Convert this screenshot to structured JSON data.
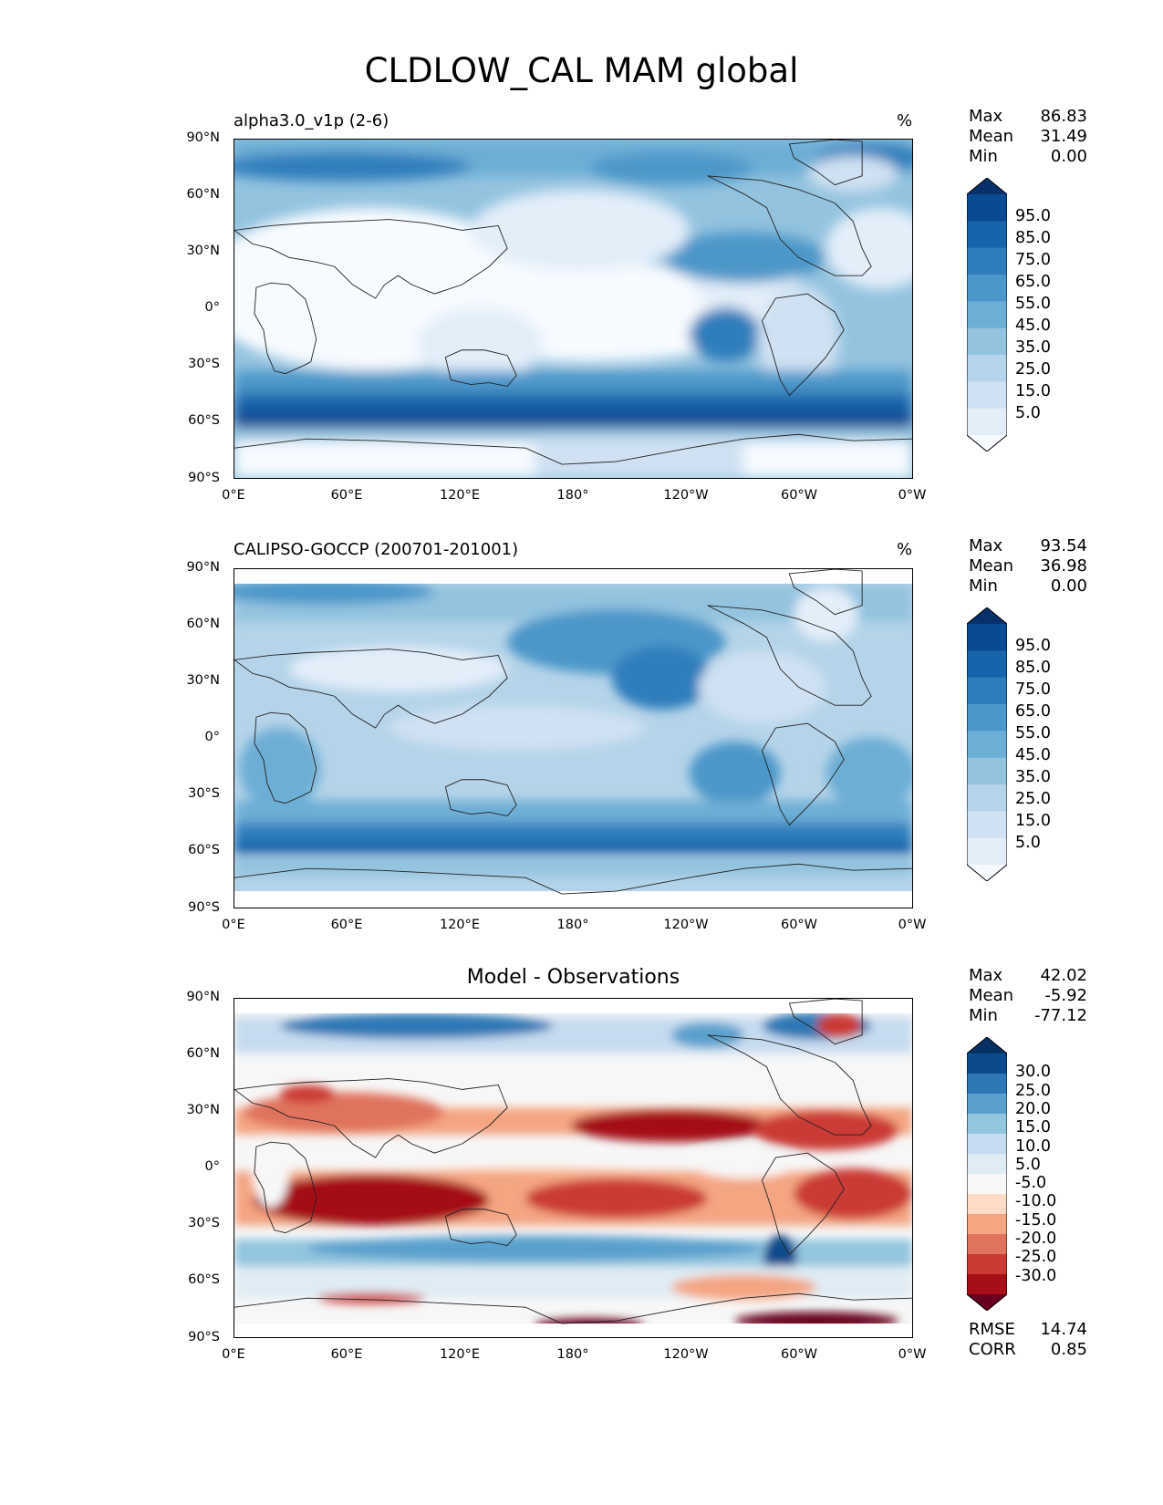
{
  "title": "CLDLOW_CAL MAM global",
  "axes": {
    "lat_ticks": [
      "90°N",
      "60°N",
      "30°N",
      "0°",
      "30°S",
      "60°S",
      "90°S"
    ],
    "lon_ticks": [
      "0°E",
      "60°E",
      "120°E",
      "180°",
      "120°W",
      "60°W",
      "0°W"
    ]
  },
  "panels": [
    {
      "id": "model",
      "subtitle": "alpha3.0_v1p (2-6)",
      "unit": "%",
      "stats": [
        {
          "label": "Max",
          "value": "86.83"
        },
        {
          "label": "Mean",
          "value": "31.49"
        },
        {
          "label": "Min",
          "value": "0.00"
        }
      ],
      "colorbar": {
        "colors": [
          "#f7fbff",
          "#e3eef9",
          "#cfe1f2",
          "#b5d4e9",
          "#93c3df",
          "#6daed5",
          "#4b97c9",
          "#2f7ebc",
          "#1864aa",
          "#0a4a90",
          "#08306b"
        ],
        "labels": [
          "95.0",
          "85.0",
          "75.0",
          "65.0",
          "55.0",
          "45.0",
          "35.0",
          "25.0",
          "15.0",
          "5.0"
        ]
      }
    },
    {
      "id": "obs",
      "subtitle": "CALIPSO-GOCCP (200701-201001)",
      "unit": "%",
      "stats": [
        {
          "label": "Max",
          "value": "93.54"
        },
        {
          "label": "Mean",
          "value": "36.98"
        },
        {
          "label": "Min",
          "value": "0.00"
        }
      ],
      "colorbar": {
        "colors": [
          "#f7fbff",
          "#e3eef9",
          "#cfe1f2",
          "#b5d4e9",
          "#93c3df",
          "#6daed5",
          "#4b97c9",
          "#2f7ebc",
          "#1864aa",
          "#0a4a90",
          "#08306b"
        ],
        "labels": [
          "95.0",
          "85.0",
          "75.0",
          "65.0",
          "55.0",
          "45.0",
          "35.0",
          "25.0",
          "15.0",
          "5.0"
        ]
      }
    },
    {
      "id": "diff",
      "title": "Model - Observations",
      "stats": [
        {
          "label": "Max",
          "value": "42.02"
        },
        {
          "label": "Mean",
          "value": "-5.92"
        },
        {
          "label": "Min",
          "value": "-77.12"
        }
      ],
      "colorbar": {
        "colors": [
          "#67001f",
          "#a50f15",
          "#cb3b35",
          "#e0735d",
          "#f4a582",
          "#fddbc7",
          "#f7f7f7",
          "#e0ecf4",
          "#c6dbef",
          "#92c5de",
          "#5aa0cd",
          "#2e78b5",
          "#0b4b8c",
          "#053061"
        ],
        "labels": [
          "30.0",
          "25.0",
          "20.0",
          "15.0",
          "10.0",
          "5.0",
          "-5.0",
          "-10.0",
          "-15.0",
          "-20.0",
          "-25.0",
          "-30.0"
        ]
      },
      "metrics": [
        {
          "label": "RMSE",
          "value": "14.74"
        },
        {
          "label": "CORR",
          "value": "0.85"
        }
      ]
    }
  ]
}
